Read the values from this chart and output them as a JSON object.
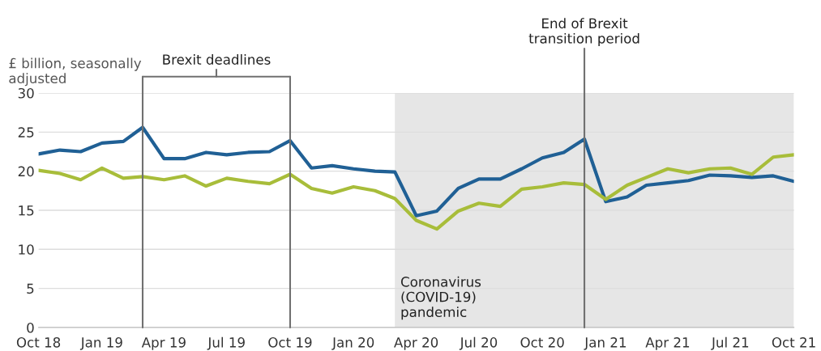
{
  "chart_data": {
    "type": "line",
    "ylabel": "£ billion, seasonally adjusted",
    "annotations": [
      "Brexit deadlines"
    ],
    "x": [
      "2018-10",
      "2018-11",
      "2018-12",
      "2019-01",
      "2019-02",
      "2019-03",
      "2019-04",
      "2019-05",
      "2019-06",
      "2019-07",
      "2019-08",
      "2019-09",
      "2019-10",
      "2019-11",
      "2019-12",
      "2020-01",
      "2020-02",
      "2020-03",
      "2020-04",
      "2020-05",
      "2020-06",
      "2020-07",
      "2020-08",
      "2020-09",
      "2020-10",
      "2020-11",
      "2020-12",
      "2021-01",
      "2021-02",
      "2021-03",
      "2021-04",
      "2021-05",
      "2021-06",
      "2021-07",
      "2021-08",
      "2021-09",
      "2021-10"
    ],
    "series": [
      {
        "color": "#206095",
        "values": [
          22.2,
          22.7,
          22.5,
          23.6,
          23.8,
          25.6,
          21.6,
          21.6,
          22.4,
          22.1,
          22.4,
          22.5,
          23.9,
          20.4,
          20.7,
          20.3,
          20.0,
          19.9,
          14.3,
          14.9,
          17.8,
          19.0,
          19.0,
          20.3,
          21.7,
          22.4,
          24.1,
          16.1,
          16.7,
          18.2,
          18.5,
          18.8,
          19.5,
          19.4,
          19.2,
          19.4,
          18.7
        ]
      },
      {
        "color": "#a8bd3a",
        "values": [
          20.1,
          19.7,
          18.9,
          20.4,
          19.1,
          19.3,
          18.9,
          19.4,
          18.1,
          19.1,
          18.7,
          18.4,
          19.6,
          17.8,
          17.2,
          18.0,
          17.5,
          16.5,
          13.7,
          12.6,
          14.9,
          15.9,
          15.5,
          17.7,
          18.0,
          18.5,
          18.3,
          16.4,
          18.2,
          19.2,
          20.3,
          19.8,
          20.3,
          20.4,
          19.6,
          21.8,
          22.1
        ]
      }
    ],
    "xlim": [
      "2018-10",
      "2021-10"
    ],
    "xticks": [
      {
        "value": "2018-10",
        "label": "Oct 18"
      },
      {
        "value": "2019-01",
        "label": "Jan 19"
      },
      {
        "value": "2019-04",
        "label": "Apr 19"
      },
      {
        "value": "2019-07",
        "label": "Jul 19"
      },
      {
        "value": "2019-10",
        "label": "Oct 19"
      },
      {
        "value": "2020-01",
        "label": "Jan 20"
      },
      {
        "value": "2020-04",
        "label": "Apr 20"
      },
      {
        "value": "2020-07",
        "label": "Jul 20"
      },
      {
        "value": "2020-10",
        "label": "Oct 20"
      },
      {
        "value": "2021-01",
        "label": "Jan 21"
      },
      {
        "value": "2021-04",
        "label": "Apr 21"
      },
      {
        "value": "2021-07",
        "label": "Jul 21"
      },
      {
        "value": "2021-10",
        "label": "Oct 21"
      }
    ],
    "ylim": [
      0,
      30
    ],
    "yticks": [
      0,
      5,
      10,
      15,
      20,
      25,
      30
    ],
    "ref_lines": [
      {
        "axis": "x",
        "value": "2019-03",
        "color": "#707070"
      },
      {
        "axis": "x",
        "value": "2019-10",
        "color": "#707070"
      },
      {
        "axis": "x",
        "value": "2020-12",
        "label": "End of Brexit transition period",
        "color": "#707070"
      }
    ],
    "bands": [
      {
        "axis": "x",
        "from": "2020-03",
        "to": "2021-10",
        "label": "Coronavirus (COVID-19) pandemic",
        "color": "#e6e6e6"
      }
    ],
    "grid": "y",
    "legend": false,
    "marker": "none",
    "line_style": "solid"
  }
}
